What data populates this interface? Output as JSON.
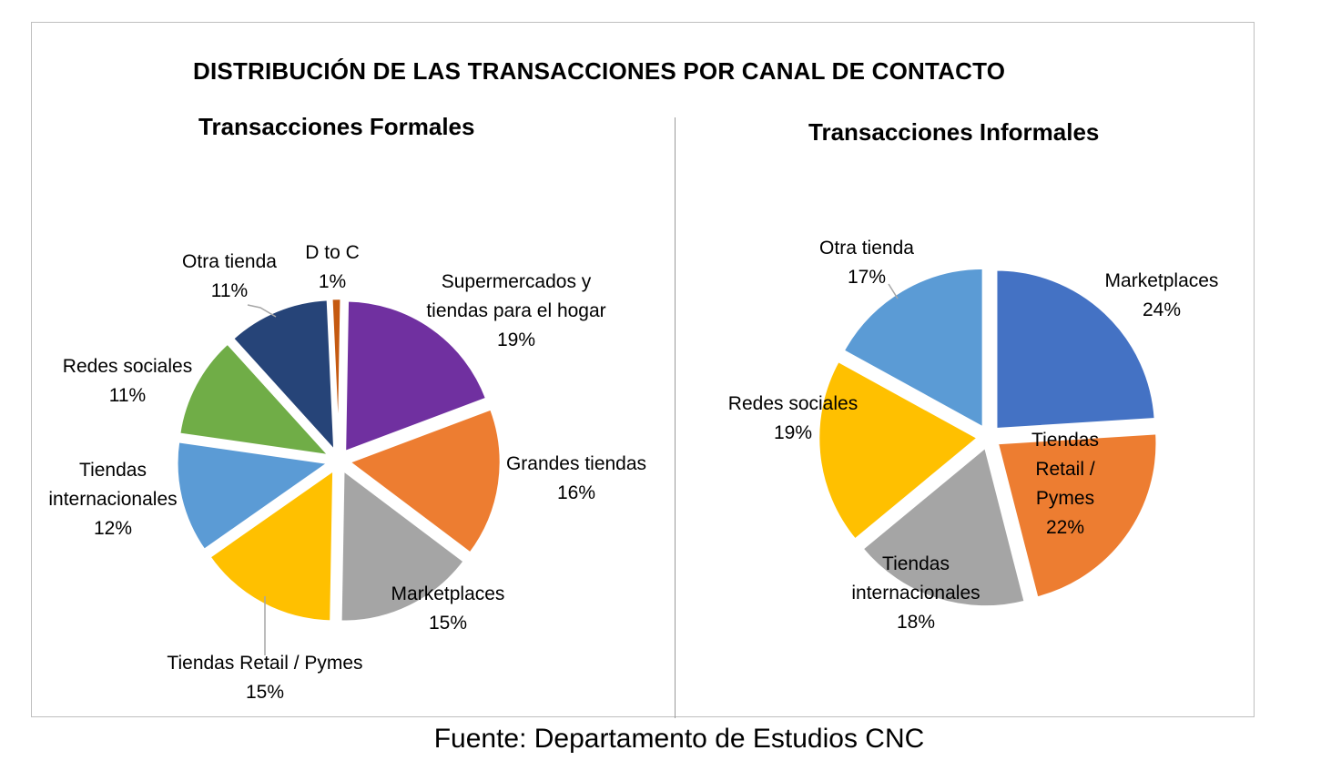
{
  "title": "DISTRIBUCIÓN DE LAS TRANSACCIONES  POR CANAL DE CONTACTO",
  "source": "Fuente: Departamento de Estudios CNC",
  "chart_data": [
    {
      "type": "pie",
      "title": "Transacciones Formales",
      "slices": [
        {
          "label": "Supermercados y tiendas para el hogar",
          "label_lines": [
            "Supermercados y",
            "tiendas para el hogar"
          ],
          "value": 19,
          "pct": "19%",
          "color": "#7030a0"
        },
        {
          "label": "Grandes tiendas",
          "label_lines": [
            "Grandes tiendas"
          ],
          "value": 16,
          "pct": "16%",
          "color": "#ed7d31"
        },
        {
          "label": "Marketplaces",
          "label_lines": [
            "Marketplaces"
          ],
          "value": 15,
          "pct": "15%",
          "color": "#a5a5a5"
        },
        {
          "label": "Tiendas Retail / Pymes",
          "label_lines": [
            "Tiendas Retail / Pymes"
          ],
          "value": 15,
          "pct": "15%",
          "color": "#ffc000"
        },
        {
          "label": "Tiendas internacionales",
          "label_lines": [
            "Tiendas",
            "internacionales"
          ],
          "value": 12,
          "pct": "12%",
          "color": "#5b9bd5"
        },
        {
          "label": "Redes sociales",
          "label_lines": [
            "Redes sociales"
          ],
          "value": 11,
          "pct": "11%",
          "color": "#70ad47"
        },
        {
          "label": "Otra tienda",
          "label_lines": [
            "Otra tienda"
          ],
          "value": 11,
          "pct": "11%",
          "color": "#264478"
        },
        {
          "label": "D to C",
          "label_lines": [
            "D to C"
          ],
          "value": 1,
          "pct": "1%",
          "color": "#c55a11"
        }
      ]
    },
    {
      "type": "pie",
      "title": "Transacciones Informales",
      "slices": [
        {
          "label": "Marketplaces",
          "label_lines": [
            "Marketplaces"
          ],
          "value": 24,
          "pct": "24%",
          "color": "#4472c4"
        },
        {
          "label": "Tiendas Retail / Pymes",
          "label_lines": [
            "Tiendas",
            "Retail /",
            "Pymes"
          ],
          "value": 22,
          "pct": "22%",
          "color": "#ed7d31"
        },
        {
          "label": "Tiendas internacionales",
          "label_lines": [
            "Tiendas",
            "internacionales"
          ],
          "value": 18,
          "pct": "18%",
          "color": "#a5a5a5"
        },
        {
          "label": "Redes sociales",
          "label_lines": [
            "Redes sociales"
          ],
          "value": 19,
          "pct": "19%",
          "color": "#ffc000"
        },
        {
          "label": "Otra tienda",
          "label_lines": [
            "Otra tienda"
          ],
          "value": 17,
          "pct": "17%",
          "color": "#5b9bd5"
        }
      ]
    }
  ]
}
